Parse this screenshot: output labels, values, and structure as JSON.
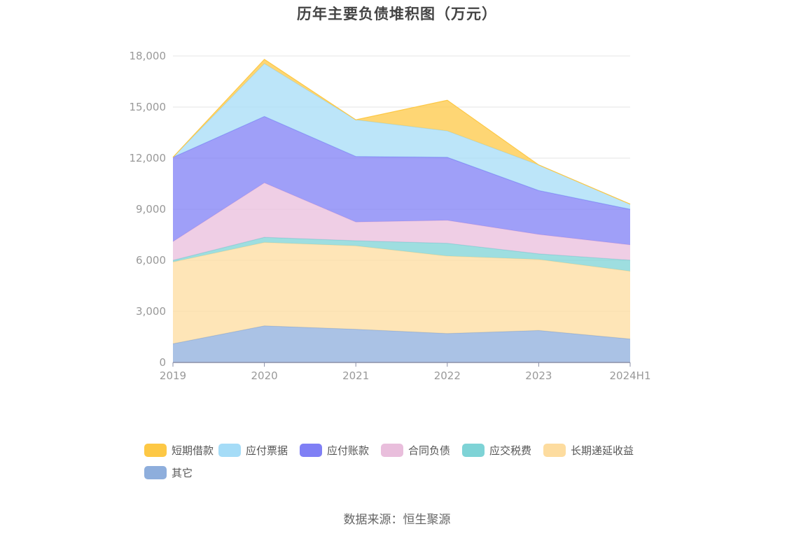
{
  "title": "历年主要负债堆积图（万元）",
  "source": "数据来源：恒生聚源",
  "chart_data": {
    "type": "area",
    "stacked": true,
    "title": "历年主要负债堆积图（万元）",
    "x": [
      "2019",
      "2020",
      "2021",
      "2022",
      "2023",
      "2024H1"
    ],
    "ylim": [
      0,
      18000
    ],
    "yticks": [
      0,
      3000,
      6000,
      9000,
      12000,
      15000,
      18000
    ],
    "ytick_labels": [
      "0",
      "3,000",
      "6,000",
      "9,000",
      "12,000",
      "15,000",
      "18,000"
    ],
    "grid": true,
    "legend_position": "bottom",
    "series": [
      {
        "name": "其它",
        "color": "#8eaedc",
        "values": [
          1100,
          2150,
          1950,
          1700,
          1880,
          1380
        ]
      },
      {
        "name": "长期递延收益",
        "color": "#fddc9f",
        "values": [
          4800,
          4900,
          4900,
          4550,
          4170,
          3980
        ]
      },
      {
        "name": "应交税费",
        "color": "#7ed3d6",
        "values": [
          100,
          300,
          300,
          750,
          330,
          650
        ]
      },
      {
        "name": "合同负债",
        "color": "#e9bedc",
        "values": [
          1100,
          3200,
          1100,
          1350,
          1140,
          900
        ]
      },
      {
        "name": "应付账款",
        "color": "#7f7ff5",
        "values": [
          4950,
          3900,
          3850,
          3700,
          2580,
          2090
        ]
      },
      {
        "name": "应付票据",
        "color": "#a5dcf7",
        "values": [
          0,
          3100,
          2150,
          1550,
          1500,
          300
        ]
      },
      {
        "name": "短期借款",
        "color": "#fdc845",
        "values": [
          0,
          250,
          0,
          1800,
          0,
          0
        ]
      }
    ],
    "legend_order": [
      "短期借款",
      "应付票据",
      "应付账款",
      "合同负债",
      "应交税费",
      "长期递延收益",
      "其它"
    ]
  }
}
